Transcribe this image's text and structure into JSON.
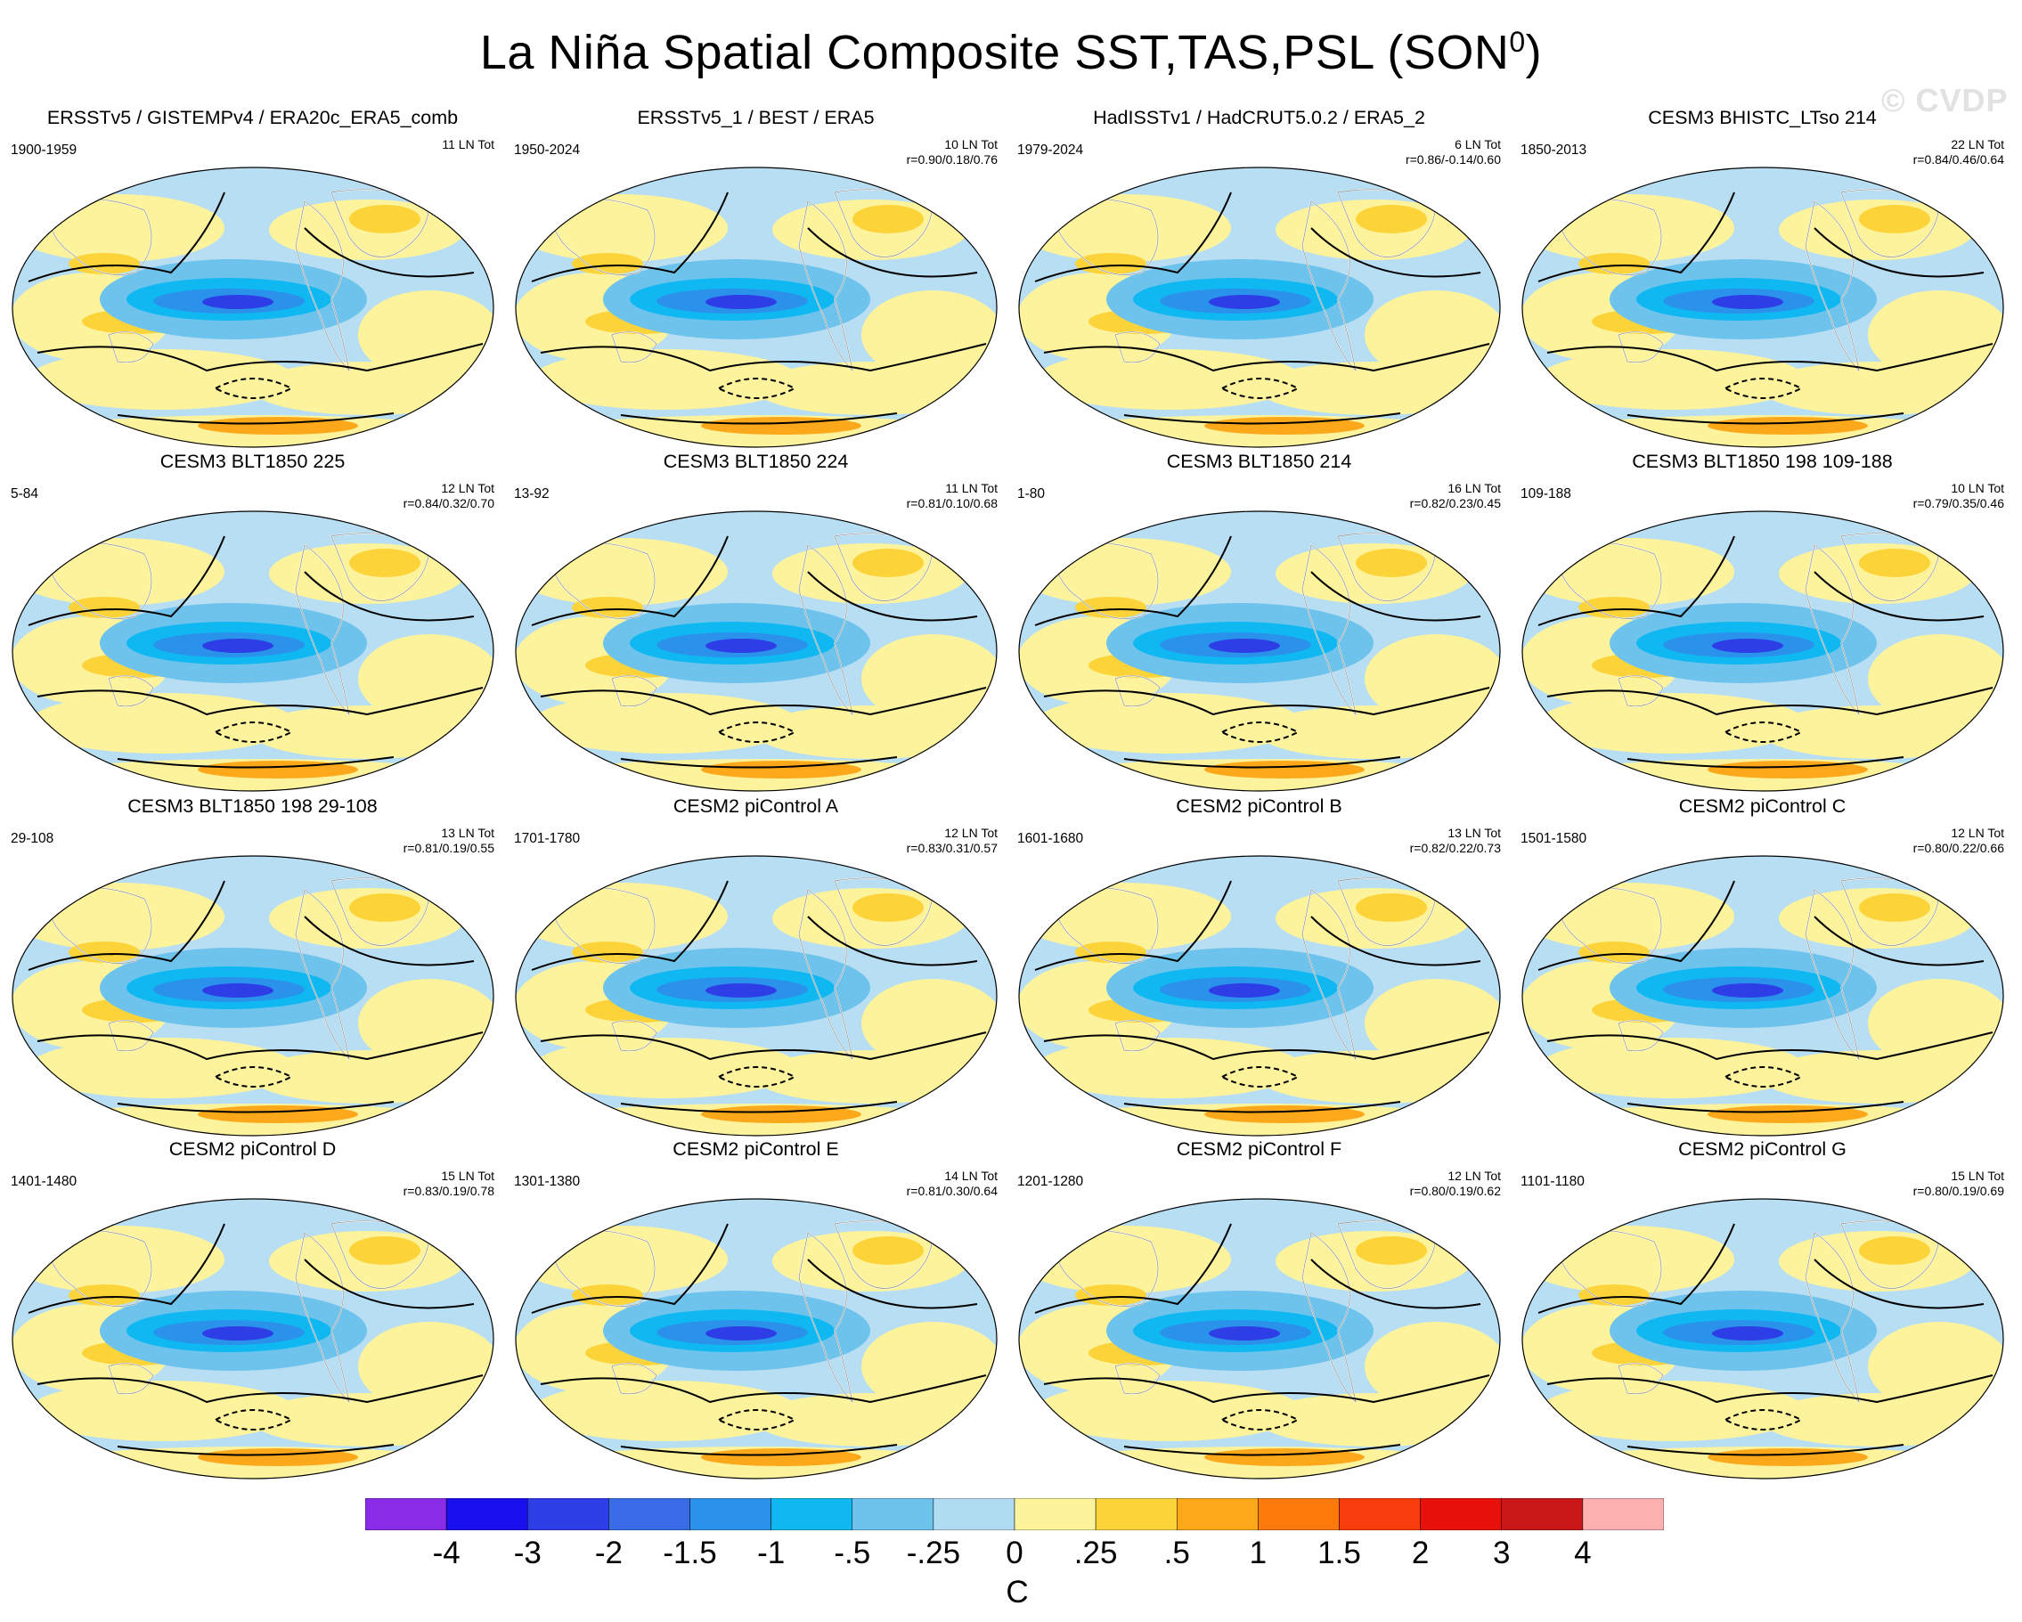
{
  "figure": {
    "title": "La Niña Spatial Composite SST,TAS,PSL (SON",
    "title_sup": "0",
    "title_close": ")",
    "watermark": "© CVDP"
  },
  "panels": [
    {
      "title": "ERSSTv5 / GISTEMPv4 / ERA20c_ERA5_comb",
      "period": "1900-1959",
      "count": "11 LN Tot",
      "stats": ""
    },
    {
      "title": "ERSSTv5_1 / BEST / ERA5",
      "period": "1950-2024",
      "count": "10 LN Tot",
      "stats": "r=0.90/0.18/0.76"
    },
    {
      "title": "HadISSTv1 / HadCRUT5.0.2 / ERA5_2",
      "period": "1979-2024",
      "count": "6 LN Tot",
      "stats": "r=0.86/-0.14/0.60"
    },
    {
      "title": "CESM3 BHISTC_LTso 214",
      "period": "1850-2013",
      "count": "22 LN Tot",
      "stats": "r=0.84/0.46/0.64"
    },
    {
      "title": "CESM3 BLT1850 225",
      "period": "5-84",
      "count": "12 LN Tot",
      "stats": "r=0.84/0.32/0.70"
    },
    {
      "title": "CESM3 BLT1850 224",
      "period": "13-92",
      "count": "11 LN Tot",
      "stats": "r=0.81/0.10/0.68"
    },
    {
      "title": "CESM3 BLT1850 214",
      "period": "1-80",
      "count": "16 LN Tot",
      "stats": "r=0.82/0.23/0.45"
    },
    {
      "title": "CESM3 BLT1850 198 109-188",
      "period": "109-188",
      "count": "10 LN Tot",
      "stats": "r=0.79/0.35/0.46"
    },
    {
      "title": "CESM3 BLT1850 198 29-108",
      "period": "29-108",
      "count": "13 LN Tot",
      "stats": "r=0.81/0.19/0.55"
    },
    {
      "title": "CESM2 piControl A",
      "period": "1701-1780",
      "count": "12 LN Tot",
      "stats": "r=0.83/0.31/0.57"
    },
    {
      "title": "CESM2 piControl B",
      "period": "1601-1680",
      "count": "13 LN Tot",
      "stats": "r=0.82/0.22/0.73"
    },
    {
      "title": "CESM2 piControl C",
      "period": "1501-1580",
      "count": "12 LN Tot",
      "stats": "r=0.80/0.22/0.66"
    },
    {
      "title": "CESM2 piControl D",
      "period": "1401-1480",
      "count": "15 LN Tot",
      "stats": "r=0.83/0.19/0.78"
    },
    {
      "title": "CESM2 piControl E",
      "period": "1301-1380",
      "count": "14 LN Tot",
      "stats": "r=0.81/0.30/0.64"
    },
    {
      "title": "CESM2 piControl F",
      "period": "1201-1280",
      "count": "12 LN Tot",
      "stats": "r=0.80/0.19/0.62"
    },
    {
      "title": "CESM2 piControl G",
      "period": "1101-1180",
      "count": "15 LN Tot",
      "stats": "r=0.80/0.19/0.69"
    }
  ],
  "colorbar": {
    "unit": "C",
    "labels": [
      "-4",
      "-3",
      "-2",
      "-1.5",
      "-1",
      "-.5",
      "-.25",
      "0",
      ".25",
      ".5",
      "1",
      "1.5",
      "2",
      "3",
      "4"
    ],
    "colors": [
      "#8a2be8",
      "#1a10ee",
      "#2e3ee6",
      "#3a6ce8",
      "#2b92ec",
      "#10b8f2",
      "#6ec3ec",
      "#b0dcf2",
      "#fdf39c",
      "#fdd33a",
      "#fda81a",
      "#fd7a0a",
      "#f93c0c",
      "#e8100a",
      "#c81818",
      "#fcb0b0"
    ]
  }
}
